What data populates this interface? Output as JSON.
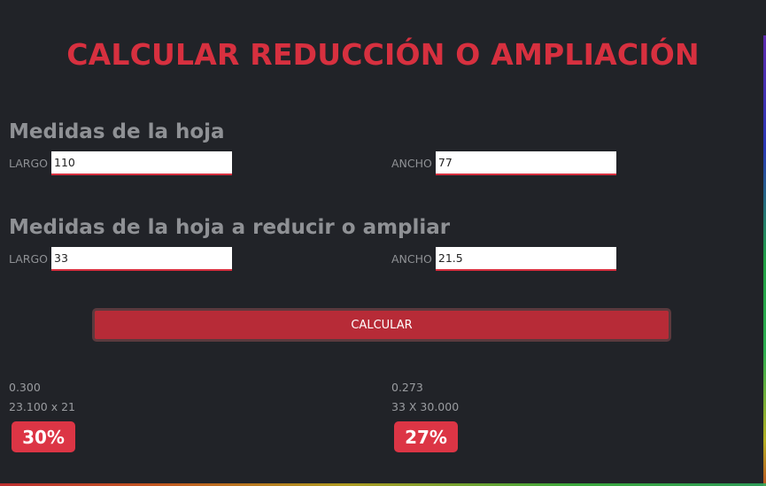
{
  "title": "CALCULAR REDUCCIÓN O AMPLIACIÓN",
  "sheet": {
    "heading": "Medidas de la hoja",
    "largo_label": "LARGO",
    "largo_value": "110",
    "ancho_label": "ANCHO",
    "ancho_value": "77"
  },
  "target": {
    "heading": "Medidas de la hoja a reducir o ampliar",
    "largo_label": "LARGO",
    "largo_value": "33",
    "ancho_label": "ANCHO",
    "ancho_value": "21.5"
  },
  "button": {
    "label": "CALCULAR"
  },
  "results": {
    "left": {
      "ratio": "0.300",
      "dimensions": "23.100 x 21",
      "percent": "30%"
    },
    "right": {
      "ratio": "0.273",
      "dimensions": "33 X 30.000",
      "percent": "27%"
    }
  },
  "colors": {
    "accent": "#d7303f",
    "background": "#212328",
    "button": "#b72b37",
    "badge": "#dc3545"
  }
}
